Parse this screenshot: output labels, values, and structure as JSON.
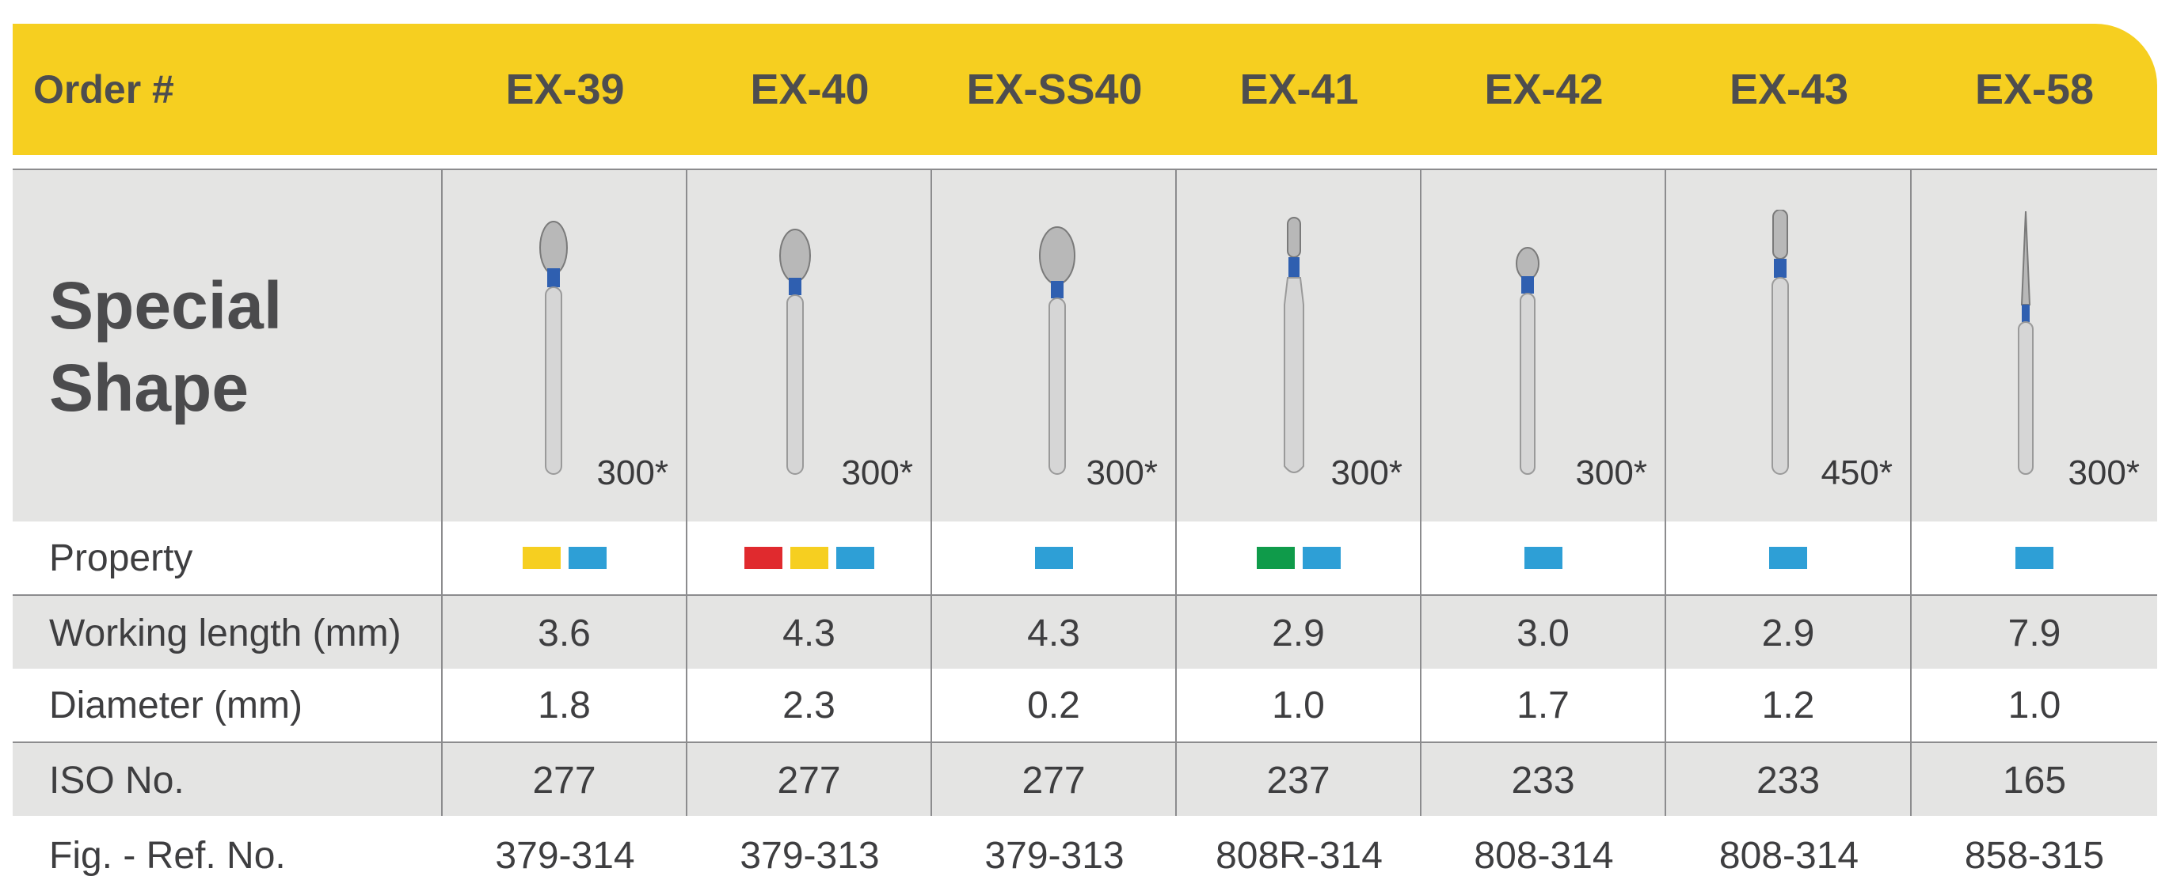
{
  "header": {
    "label": "Order #",
    "orders": [
      "EX-39",
      "EX-40",
      "EX-SS40",
      "EX-41",
      "EX-42",
      "EX-43",
      "EX-58"
    ]
  },
  "shape_row": {
    "title_line1": "Special",
    "title_line2": "Shape",
    "quantities": [
      "300*",
      "300*",
      "300*",
      "300*",
      "300*",
      "450*",
      "300*"
    ]
  },
  "property_row": {
    "label": "Property",
    "swatches": [
      [
        "#f6cf20",
        "#2e9fd6"
      ],
      [
        "#e02a2e",
        "#f6cf20",
        "#2e9fd6"
      ],
      [
        "#2e9fd6"
      ],
      [
        "#0f9b4a",
        "#2e9fd6"
      ],
      [
        "#2e9fd6"
      ],
      [
        "#2e9fd6"
      ],
      [
        "#2e9fd6"
      ]
    ]
  },
  "working_length_row": {
    "label": "Working length (mm)",
    "values": [
      "3.6",
      "4.3",
      "4.3",
      "2.9",
      "3.0",
      "2.9",
      "7.9"
    ]
  },
  "diameter_row": {
    "label": "Diameter (mm)",
    "values": [
      "1.8",
      "2.3",
      "0.2",
      "1.0",
      "1.7",
      "1.2",
      "1.0"
    ]
  },
  "iso_row": {
    "label": "ISO No.",
    "values": [
      "277",
      "277",
      "277",
      "237",
      "233",
      "233",
      "165"
    ]
  },
  "ref_row": {
    "label": "Fig. - Ref. No.",
    "values": [
      "379-314",
      "379-313",
      "379-313",
      "808R-314",
      "808-314",
      "808-314",
      "858-315"
    ]
  },
  "bur_shapes": [
    "pear",
    "pear",
    "pear-large",
    "cylinder-round",
    "pear-small",
    "cylinder-tall",
    "flame-long"
  ],
  "colors": {
    "header": "#f6cf20",
    "band": "#e4e4e3",
    "collar": "#2f5fb0"
  }
}
